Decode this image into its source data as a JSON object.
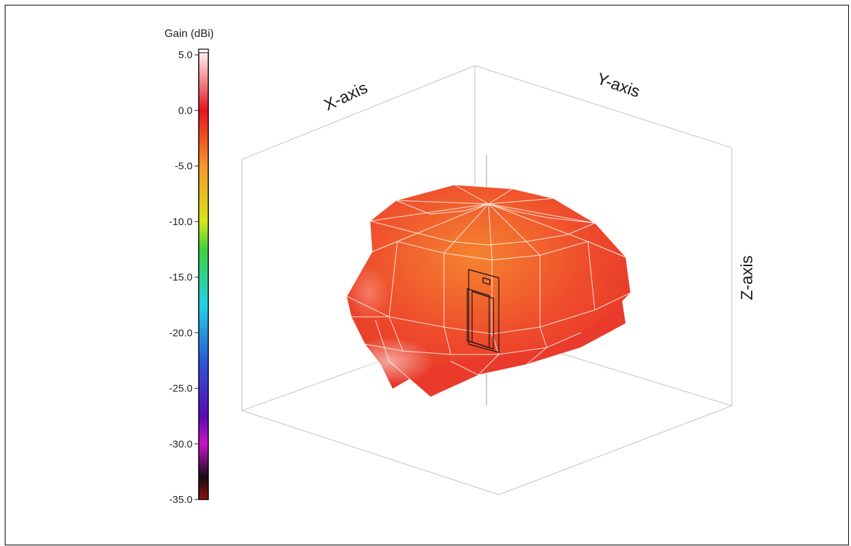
{
  "chart_data": {
    "type": "3d-radiation-pattern",
    "colorbar": {
      "title": "Gain (dBi)",
      "min": -35.0,
      "max": 5.0,
      "ticks": [
        "5.0",
        "0.0",
        "-5.0",
        "-10.0",
        "-15.0",
        "-20.0",
        "-25.0",
        "-30.0",
        "-35.0"
      ],
      "tick_values": [
        5,
        0,
        -5,
        -10,
        -15,
        -20,
        -25,
        -30,
        -35
      ],
      "stops": [
        {
          "value": 5.5,
          "color": "#ffffff"
        },
        {
          "value": 0,
          "color": "#e8141c"
        },
        {
          "value": -5,
          "color": "#f5962a"
        },
        {
          "value": -10,
          "color": "#d6e61c"
        },
        {
          "value": -12.5,
          "color": "#3cd23c"
        },
        {
          "value": -17.5,
          "color": "#23d2e6"
        },
        {
          "value": -22.5,
          "color": "#2a5ad6"
        },
        {
          "value": -27.5,
          "color": "#5a0ab4"
        },
        {
          "value": -30,
          "color": "#c814c8"
        },
        {
          "value": -33,
          "color": "#1a0a14"
        },
        {
          "value": -35,
          "color": "#8a1410"
        }
      ]
    },
    "axes": {
      "x_label": "X-axis",
      "y_label": "Y-axis",
      "z_label": "Z-axis"
    },
    "pattern": {
      "max_gain_dbi": 3.0,
      "min_gain_dbi": -3.0,
      "surface_color": "#f04a2e",
      "mesh_color": "#ffffff"
    }
  }
}
